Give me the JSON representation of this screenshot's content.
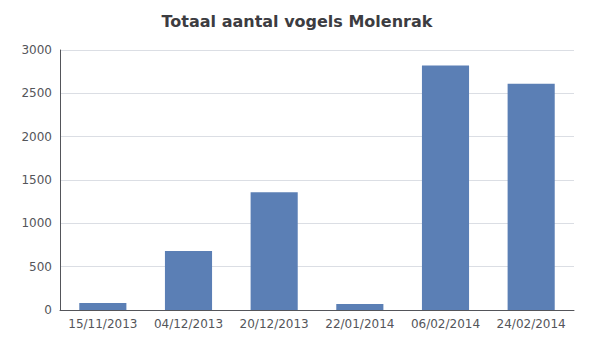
{
  "chart_data": {
    "type": "bar",
    "title": "Totaal aantal vogels Molenrak",
    "categories": [
      "15/11/2013",
      "04/12/2013",
      "20/12/2013",
      "22/01/2014",
      "06/02/2014",
      "24/02/2014"
    ],
    "values": [
      80,
      680,
      1360,
      70,
      2820,
      2610
    ],
    "color": "#5b7fb5",
    "ylim": [
      0,
      3000
    ],
    "yticks": [
      0,
      500,
      1000,
      1500,
      2000,
      2500,
      3000
    ],
    "grid": true
  }
}
